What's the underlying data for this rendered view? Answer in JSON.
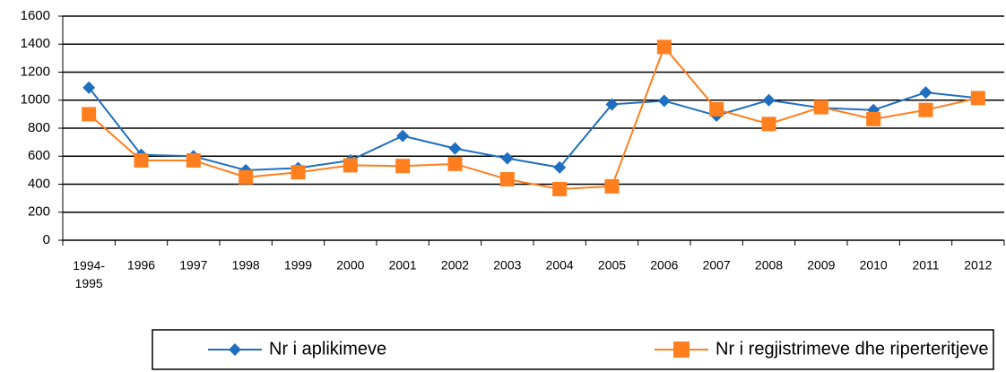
{
  "chart_data": {
    "type": "line",
    "categories": [
      "1994-1995",
      "1996",
      "1997",
      "1998",
      "1999",
      "2000",
      "2001",
      "2002",
      "2003",
      "2004",
      "2005",
      "2006",
      "2007",
      "2008",
      "2009",
      "2010",
      "2011",
      "2012"
    ],
    "series": [
      {
        "name": "Nr i aplikimeve",
        "color": "#1f6fc0",
        "marker": "diamond",
        "values": [
          1090,
          610,
          600,
          500,
          515,
          570,
          745,
          655,
          585,
          520,
          970,
          995,
          890,
          1000,
          945,
          930,
          1055,
          1015
        ]
      },
      {
        "name": "Nr i regjistrimeve dhe riperteritjeve",
        "color": "#ff7f1e",
        "marker": "square",
        "values": [
          900,
          570,
          570,
          450,
          485,
          535,
          530,
          545,
          435,
          365,
          385,
          1380,
          935,
          830,
          950,
          865,
          930,
          1015
        ]
      }
    ],
    "ylim": [
      0,
      1600
    ],
    "yticks": [
      0,
      200,
      400,
      600,
      800,
      1000,
      1200,
      1400,
      1600
    ],
    "grid": true,
    "legend": "bottom"
  }
}
